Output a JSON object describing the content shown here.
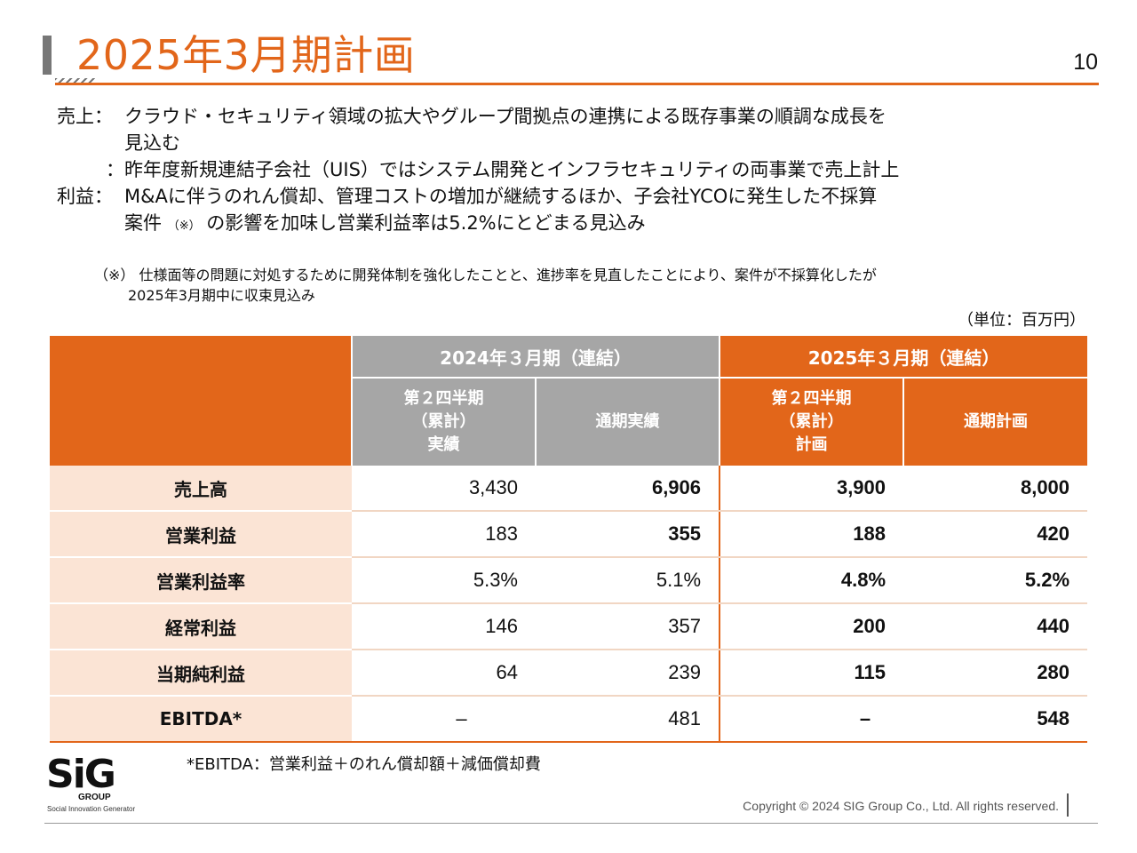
{
  "header": {
    "title": "2025年3月期計画",
    "page_number": "10"
  },
  "summary": {
    "sales_label": "売上：",
    "sales_line1": "クラウド・セキュリティ領域の拡大やグループ間拠点の連携による既存事業の順調な成長を",
    "sales_line1_cont": "見込む",
    "sales_line2_label": "：",
    "sales_line2": "昨年度新規連結子会社（UIS）ではシステム開発とインフラセキュリティの両事業で売上計上",
    "profit_label": "利益：",
    "profit_line1": "M&Aに伴うのれん償却、管理コストの増加が継続するほか、子会社YCOに発生した不採算",
    "profit_line2_a": "案件",
    "profit_line2_note": "（※）",
    "profit_line2_b": "の影響を加味し営業利益率は5.2%にとどまる見込み"
  },
  "footnote": {
    "mark": "（※）",
    "line1": "仕様面等の問題に対処するために開発体制を強化したことと、進捗率を見直したことにより、案件が不採算化したが",
    "line2": "2025年3月期中に収束見込み"
  },
  "unit": "（単位：百万円）",
  "table": {
    "group_headers": [
      "2024年３月期（連結）",
      "2025年３月期（連結）"
    ],
    "sub_headers": [
      {
        "lines": [
          "第２四半期",
          "（累計）",
          "実績"
        ]
      },
      {
        "lines": [
          "通期実績"
        ]
      },
      {
        "lines": [
          "第２四半期",
          "（累計）",
          "計画"
        ]
      },
      {
        "lines": [
          "通期計画"
        ]
      }
    ],
    "rows": [
      {
        "label": "売上高",
        "values": [
          "3,430",
          "6,906",
          "3,900",
          "8,000"
        ]
      },
      {
        "label": "営業利益",
        "values": [
          "183",
          "355",
          "188",
          "420"
        ]
      },
      {
        "label": "営業利益率",
        "values": [
          "5.3%",
          "5.1%",
          "4.8%",
          "5.2%"
        ]
      },
      {
        "label": "経常利益",
        "values": [
          "146",
          "357",
          "200",
          "440"
        ]
      },
      {
        "label": "当期純利益",
        "values": [
          "64",
          "239",
          "115",
          "280"
        ]
      },
      {
        "label": "EBITDA*",
        "values": [
          "–",
          "481",
          "–",
          "548"
        ]
      }
    ]
  },
  "ebitda_note": "*EBITDA：営業利益＋のれん償却額＋減価償却費",
  "logo": {
    "mark": "SiG",
    "group": "GROUP",
    "tagline": "Social Innovation Generator"
  },
  "copyright": "Copyright © 2024  SIG Group Co., Ltd. All rights reserved.",
  "colors": {
    "accent": "#e2661a",
    "grey_header": "#a6a6a6",
    "row_label_bg": "#fbe4d5"
  }
}
